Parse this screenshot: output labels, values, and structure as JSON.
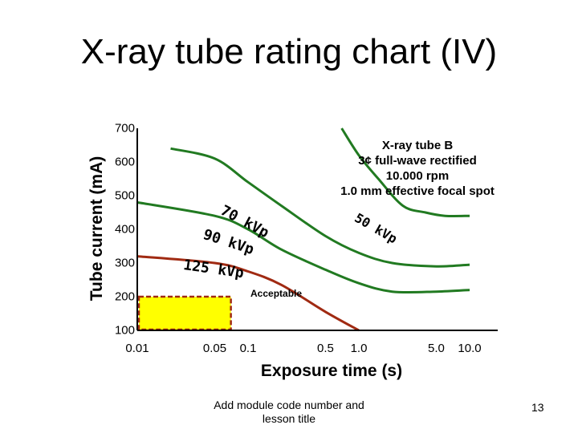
{
  "slide": {
    "title": "X-ray tube rating chart (IV)",
    "footer": "Add module code number and lesson title",
    "page_number": "13"
  },
  "colors": {
    "curve": "#217a21",
    "curve_125": "#a02a12",
    "acceptable_fill": "#ffff00",
    "acceptable_border": "#a02a12"
  },
  "chart_data": {
    "type": "line",
    "xlabel": "Exposure time (s)",
    "ylabel": "Tube current (mA)",
    "x_scale": "log",
    "xlim": [
      0.01,
      10.0
    ],
    "ylim": [
      100,
      700
    ],
    "x_ticks": [
      "0.01",
      "0.05",
      "0.1",
      "0.5",
      "1.0",
      "5.0",
      "10.0"
    ],
    "y_ticks": [
      "700",
      "600",
      "500",
      "400",
      "300",
      "200",
      "100"
    ],
    "info_lines": [
      "X-ray tube B",
      "3¢ full-wave rectified",
      "10.000 rpm",
      "1.0 mm effective focal spot"
    ],
    "region_label": "Acceptable",
    "acceptable_region": {
      "x": [
        0.01,
        0.07
      ],
      "y": [
        100,
        200
      ]
    },
    "series": [
      {
        "name": "50 kVp",
        "x": [
          0.7,
          1.0,
          1.5,
          2.5,
          4.0,
          6.0,
          10.0
        ],
        "y": [
          700,
          620,
          550,
          470,
          450,
          440,
          440
        ]
      },
      {
        "name": "70 kVp",
        "x": [
          0.02,
          0.05,
          0.1,
          0.2,
          0.5,
          1.0,
          2.0,
          5.0,
          10.0
        ],
        "y": [
          640,
          610,
          540,
          470,
          380,
          330,
          300,
          290,
          295
        ]
      },
      {
        "name": "90 kVp",
        "x": [
          0.01,
          0.05,
          0.1,
          0.2,
          0.5,
          1.0,
          2.0,
          5.0,
          10.0
        ],
        "y": [
          480,
          440,
          400,
          340,
          280,
          240,
          215,
          215,
          220
        ]
      },
      {
        "name": "125 kVp",
        "x": [
          0.01,
          0.05,
          0.1,
          0.2,
          0.5,
          1.0
        ],
        "y": [
          320,
          300,
          275,
          235,
          155,
          100
        ]
      }
    ]
  }
}
